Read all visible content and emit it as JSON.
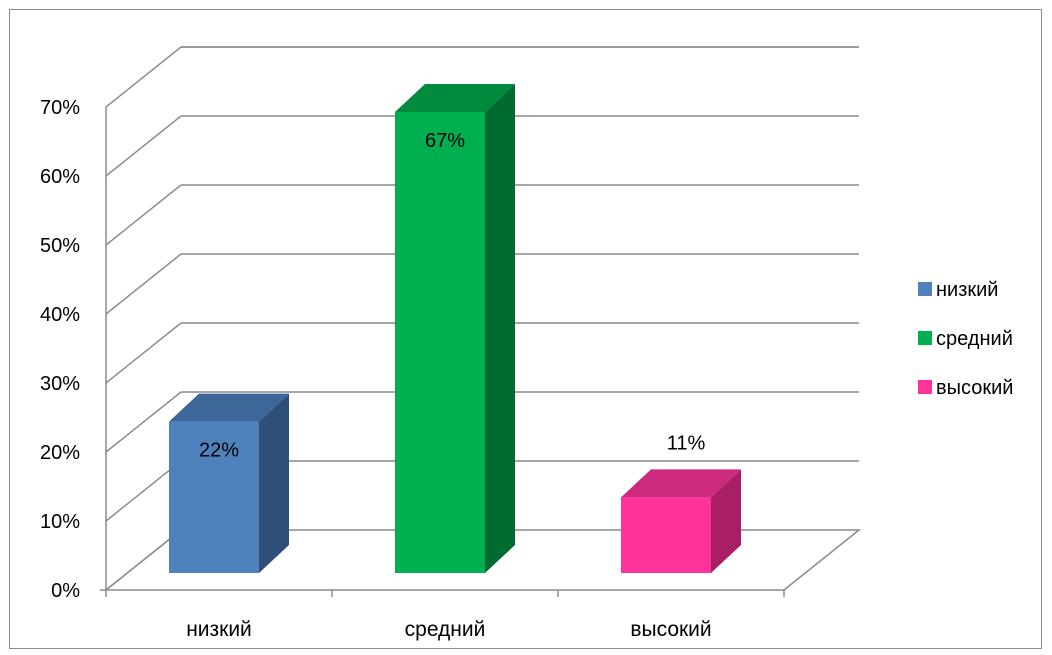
{
  "chart_data": {
    "type": "bar",
    "title": "",
    "xlabel": "",
    "ylabel": "",
    "categories": [
      "низкий",
      "средний",
      "высокий"
    ],
    "values": [
      22,
      67,
      11
    ],
    "data_labels": [
      "22%",
      "67%",
      "11%"
    ],
    "ylim": [
      0,
      70
    ],
    "yticks": [
      0,
      10,
      20,
      30,
      40,
      50,
      60,
      70
    ],
    "ytick_labels": [
      "0%",
      "10%",
      "20%",
      "30%",
      "40%",
      "50%",
      "60%",
      "70%"
    ],
    "grid": true,
    "style": "3d-column",
    "legend": {
      "placement": "right",
      "entries": [
        "низкий",
        "средний",
        "высокий"
      ]
    },
    "colors": {
      "низкий": {
        "front": "#4f81bd",
        "side": "#2e4f7a",
        "top": "#3d6699"
      },
      "средний": {
        "front": "#00b050",
        "side": "#006b30",
        "top": "#008a3e"
      },
      "высокий": {
        "front": "#ff3399",
        "side": "#a81f66",
        "top": "#cc2a7c"
      }
    },
    "gridline_color": "#8c8c8c"
  }
}
